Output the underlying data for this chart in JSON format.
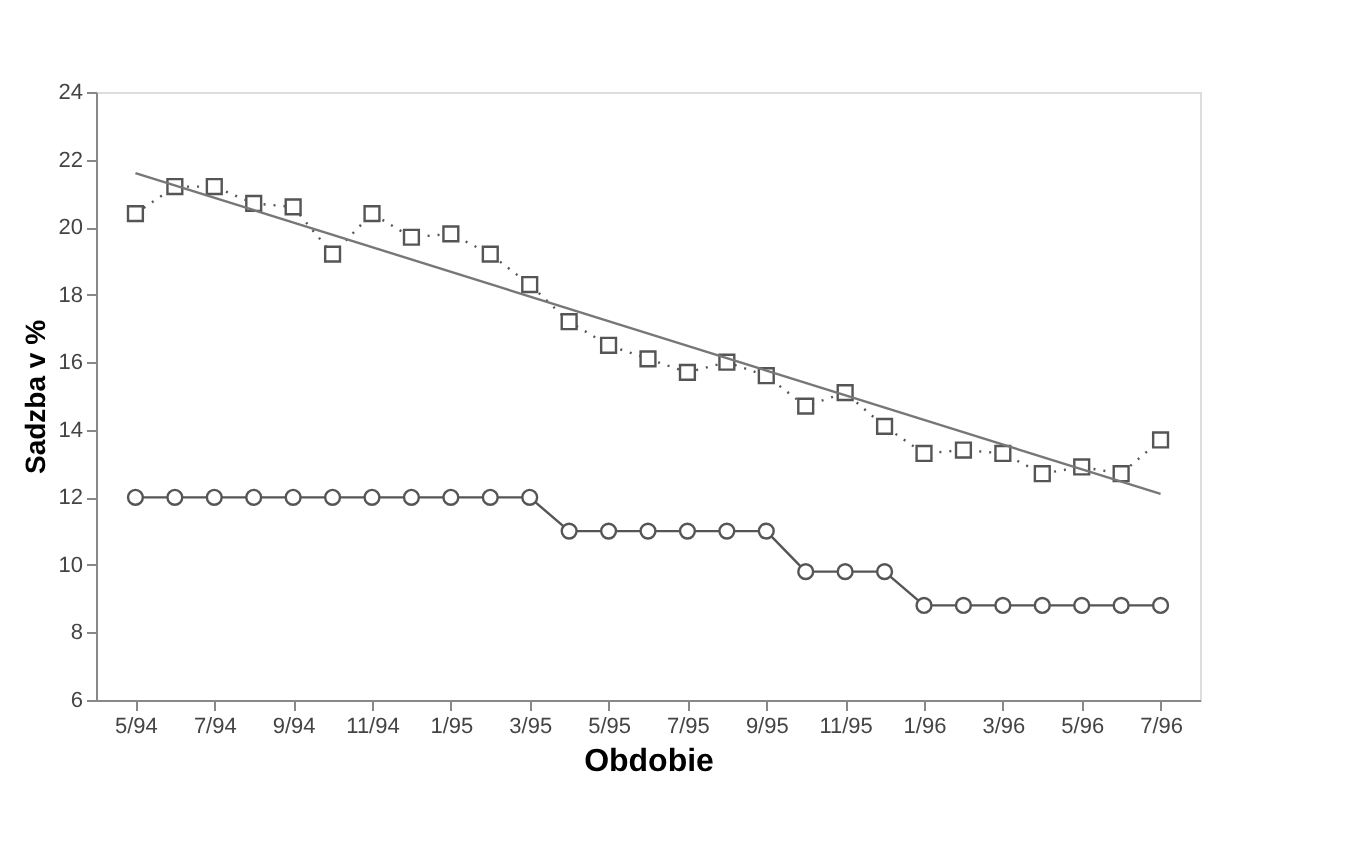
{
  "chart_data": {
    "type": "line",
    "xlabel": "Obdobie",
    "ylabel": "Sadzba v %",
    "categories": [
      "5/94",
      null,
      "7/94",
      null,
      "9/94",
      null,
      "11/94",
      null,
      "1/95",
      null,
      "3/95",
      null,
      "5/95",
      null,
      "7/95",
      null,
      "9/95",
      null,
      "11/95",
      null,
      "1/96",
      null,
      "3/96",
      null,
      "5/96",
      null,
      "7/96"
    ],
    "series": [
      {
        "color": "#555555",
        "marker": "square",
        "line_style": "dotted",
        "values": [
          20.4,
          21.2,
          21.2,
          20.7,
          20.6,
          19.2,
          20.4,
          19.7,
          19.8,
          19.2,
          18.3,
          17.2,
          16.5,
          16.1,
          15.7,
          16.0,
          15.6,
          14.7,
          15.1,
          14.1,
          13.3,
          13.4,
          13.3,
          12.7,
          12.9,
          12.7,
          13.7
        ]
      },
      {
        "color": "#555555",
        "marker": "circle",
        "line_style": "solid",
        "values": [
          12,
          12,
          12,
          12,
          12,
          12,
          12,
          12,
          12,
          12,
          12,
          11,
          11,
          11,
          11,
          11,
          11,
          9.8,
          9.8,
          9.8,
          8.8,
          8.8,
          8.8,
          8.8,
          8.8,
          8.8,
          8.8
        ]
      },
      {
        "type": "line",
        "color": "#777777",
        "marker": "none",
        "line_style": "solid",
        "x": [
          "5/94",
          "7/96"
        ],
        "values": [
          21.6,
          12.1
        ]
      }
    ],
    "ylim": [
      6,
      24
    ],
    "yticks": [
      6,
      8,
      10,
      12,
      14,
      16,
      18,
      20,
      22,
      24
    ],
    "grid": false
  }
}
